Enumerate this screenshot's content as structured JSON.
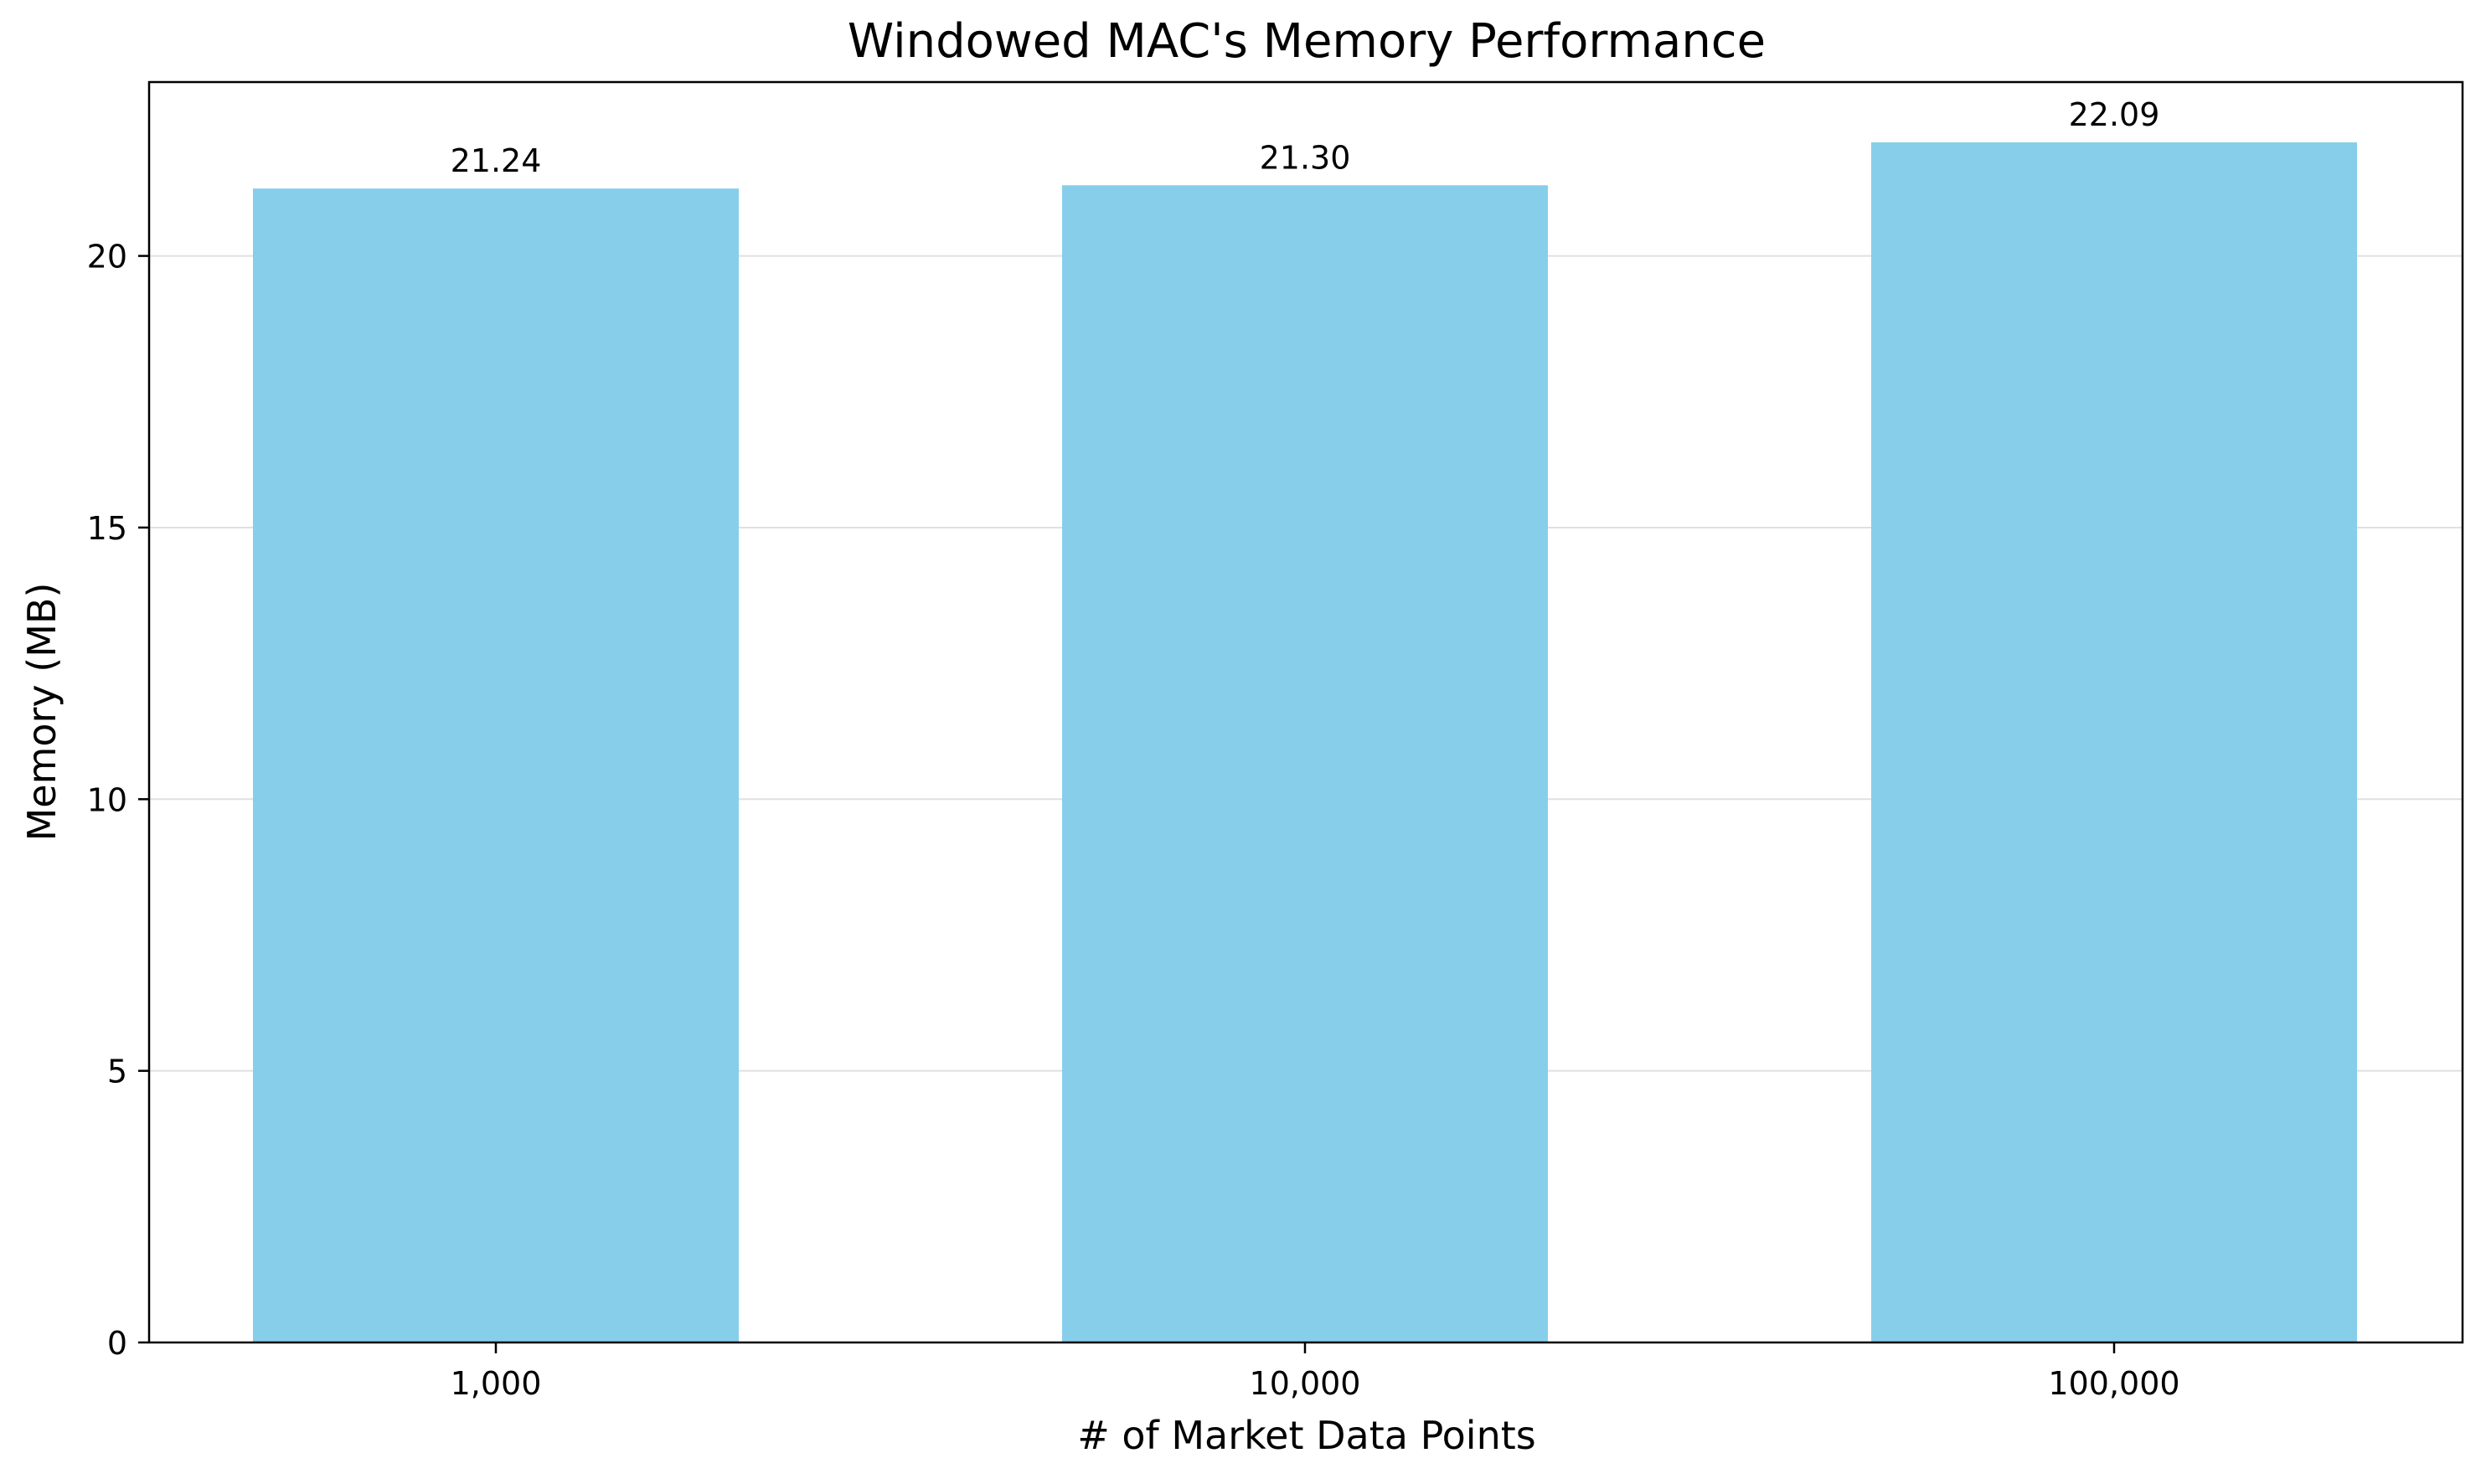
{
  "chart_data": {
    "type": "bar",
    "title": "Windowed MAC's Memory Performance",
    "xlabel": "# of Market Data Points",
    "ylabel": "Memory (MB)",
    "categories": [
      "1,000",
      "10,000",
      "100,000"
    ],
    "values": [
      21.24,
      21.3,
      22.09
    ],
    "value_labels": [
      "21.24",
      "21.30",
      "22.09"
    ],
    "ylim": [
      0,
      23.2
    ],
    "yticks": [
      0,
      5,
      10,
      15,
      20
    ],
    "ytick_labels": [
      "0",
      "5",
      "10",
      "15",
      "20"
    ],
    "grid": {
      "y": true,
      "x": false
    },
    "legend": "none",
    "colors": {
      "bar": "#87CEEB",
      "grid": "#e0e0e0",
      "axis": "#000000"
    }
  }
}
